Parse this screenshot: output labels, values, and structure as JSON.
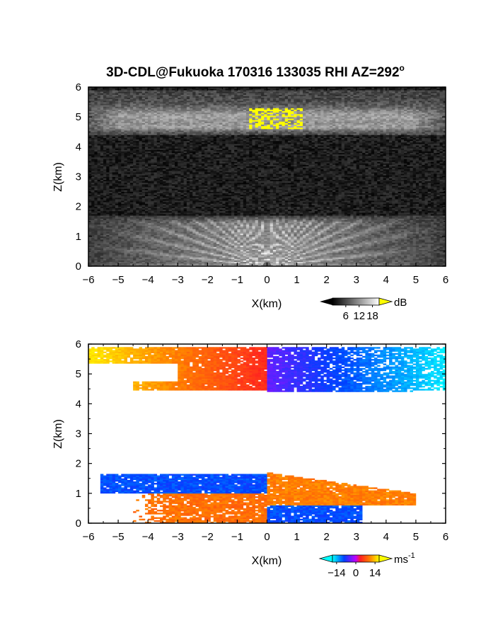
{
  "title": "3D-CDL@Fukuoka 170316 133035 RHI AZ=292",
  "title_degree": "o",
  "chart_data": [
    {
      "type": "heatmap",
      "product": "reflectivity",
      "xlabel": "X(km)",
      "ylabel": "Z(km)",
      "xlim": [
        -6,
        6
      ],
      "ylim": [
        0,
        6
      ],
      "xticks": [
        -6,
        -5,
        -4,
        -3,
        -2,
        -1,
        0,
        1,
        2,
        3,
        4,
        5,
        6
      ],
      "yticks": [
        0,
        1,
        2,
        3,
        4,
        5,
        6
      ],
      "colorscale": "grayscale (yellow above max)",
      "colorbar": {
        "unit": "dB",
        "ticks": [
          6,
          12,
          18
        ],
        "range": [
          0,
          21
        ]
      },
      "features": [
        {
          "name": "upper cloud layer",
          "z_range_km": [
            4.4,
            5.9
          ],
          "value_db": [
            6,
            14
          ]
        },
        {
          "name": "high-signal core",
          "x_range_km": [
            -1,
            1
          ],
          "z_range_km": [
            4.6,
            5.3
          ],
          "value_db": 22
        },
        {
          "name": "lower boundary layer",
          "z_range_km": [
            0,
            1.7
          ],
          "value_db": [
            6,
            16
          ]
        }
      ]
    },
    {
      "type": "heatmap",
      "product": "radial velocity",
      "xlabel": "X(km)",
      "ylabel": "Z(km)",
      "xlim": [
        -6,
        6
      ],
      "ylim": [
        0,
        6
      ],
      "xticks": [
        -6,
        -5,
        -4,
        -3,
        -2,
        -1,
        0,
        1,
        2,
        3,
        4,
        5,
        6
      ],
      "yticks": [
        0,
        1,
        2,
        3,
        4,
        5,
        6
      ],
      "colorscale": "cyan-blue-red-yellow",
      "colorbar": {
        "unit": "ms",
        "unit_superscript": "-1",
        "ticks": [
          -14,
          0,
          14
        ],
        "range": [
          -17,
          17
        ]
      },
      "features": [
        {
          "name": "upper layer, west of radar",
          "x_range_km": [
            -6,
            0
          ],
          "z_range_km": [
            4.4,
            5.9
          ],
          "velocity_ms": [
            4,
            16
          ]
        },
        {
          "name": "upper layer, east of radar",
          "x_range_km": [
            0,
            6
          ],
          "z_range_km": [
            4.4,
            5.9
          ],
          "velocity_ms": [
            -16,
            -4
          ]
        },
        {
          "name": "lower layer top, west",
          "x_range_km": [
            -5.5,
            0
          ],
          "z_range_km": [
            1.0,
            1.7
          ],
          "velocity_ms": [
            -12,
            -6
          ]
        },
        {
          "name": "lower layer, east",
          "x_range_km": [
            0,
            5
          ],
          "z_range_km": [
            0.6,
            1.7
          ],
          "velocity_ms": [
            6,
            12
          ]
        },
        {
          "name": "lower layer bottom, west",
          "x_range_km": [
            -4.5,
            0
          ],
          "z_range_km": [
            0,
            1.0
          ],
          "velocity_ms": [
            6,
            12
          ]
        },
        {
          "name": "lower layer bottom, east",
          "x_range_km": [
            0,
            3
          ],
          "z_range_km": [
            0,
            0.6
          ],
          "velocity_ms": [
            -12,
            -6
          ]
        }
      ]
    }
  ]
}
